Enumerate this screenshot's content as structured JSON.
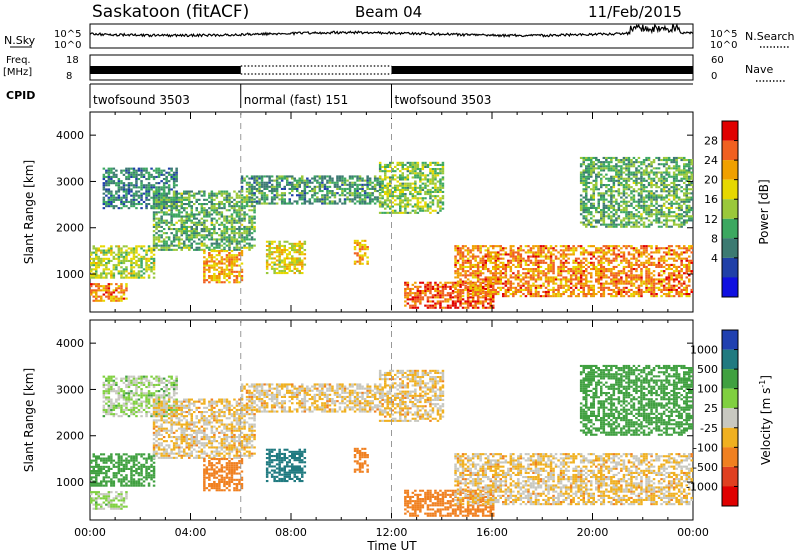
{
  "header": {
    "station": "Saskatoon (fitACF)",
    "beam": "Beam 04",
    "date": "11/Feb/2015"
  },
  "side_labels": {
    "nsky": "N.Sky",
    "freq_line1": "Freq.",
    "freq_line2": "[MHz]",
    "cpid": "CPID",
    "nsearch": "N.Search",
    "nave": "Nave"
  },
  "strip_ticks": {
    "sky_left": [
      "10^5",
      "10^0"
    ],
    "sky_right": [
      "10^5",
      "10^0"
    ],
    "freq_left": [
      "18",
      "8"
    ],
    "nave_right": [
      "60",
      "0"
    ]
  },
  "cpid_segments": [
    {
      "label": "twofsound 3503",
      "start_hr": 0,
      "end_hr": 6
    },
    {
      "label": "normal (fast) 151",
      "start_hr": 6,
      "end_hr": 12
    },
    {
      "label": "twofsound 3503",
      "start_hr": 12,
      "end_hr": 24
    }
  ],
  "x_axis": {
    "label": "Time UT",
    "range_hr": [
      0,
      24
    ],
    "ticks": [
      "00:00",
      "04:00",
      "08:00",
      "12:00",
      "16:00",
      "20:00",
      "00:00"
    ]
  },
  "y_axis": {
    "label": "Slant Range [km]",
    "range_km": [
      180,
      4500
    ],
    "ticks": [
      "1000",
      "2000",
      "3000",
      "4000"
    ]
  },
  "power_scale": {
    "label": "Power [dB]",
    "ticks": [
      "28",
      "24",
      "20",
      "16",
      "12",
      "8",
      "4"
    ],
    "colors": [
      "#e00000",
      "#f06020",
      "#f0a000",
      "#e6d800",
      "#9ac83a",
      "#3ca860",
      "#3c7a72",
      "#2040a8",
      "#1010e0"
    ]
  },
  "velocity_scale": {
    "label": "Velocity [m s",
    "label_sup": "-1",
    "label_end": "]",
    "ticks": [
      "1000",
      "500",
      "100",
      "25",
      "-25",
      "-100",
      "-500",
      "-1000"
    ],
    "colors": [
      "#2040b0",
      "#207a80",
      "#40a040",
      "#80d040",
      "#c8c8c0",
      "#f0b020",
      "#f08020",
      "#e04020",
      "#e00000"
    ]
  },
  "chart_data": {
    "type": "heatmap",
    "panels": [
      "Power [dB]",
      "Velocity [m s-1]"
    ],
    "x_range_hr": [
      0,
      24
    ],
    "y_range_km": [
      180,
      4500
    ],
    "power_range_db": [
      0,
      30
    ],
    "velocity_range_ms": [
      -1000,
      1000
    ],
    "echo_regions": [
      {
        "t0": 0.0,
        "t1": 2.6,
        "r0": 900,
        "r1": 1600,
        "power_db": 16,
        "vel_ms": 100
      },
      {
        "t0": 0.0,
        "t1": 1.5,
        "r0": 400,
        "r1": 800,
        "power_db": 24,
        "vel_ms": 25
      },
      {
        "t0": 0.5,
        "t1": 3.5,
        "r0": 2400,
        "r1": 3300,
        "power_db": 8,
        "vel_ms": 25
      },
      {
        "t0": 2.5,
        "t1": 6.5,
        "r0": 1500,
        "r1": 2800,
        "power_db": 12,
        "vel_ms": -25
      },
      {
        "t0": 4.5,
        "t1": 6.0,
        "r0": 800,
        "r1": 1500,
        "power_db": 22,
        "vel_ms": -100
      },
      {
        "t0": 6.0,
        "t1": 11.5,
        "r0": 2500,
        "r1": 3100,
        "power_db": 10,
        "vel_ms": -25
      },
      {
        "t0": 7.0,
        "t1": 8.5,
        "r0": 1000,
        "r1": 1700,
        "power_db": 18,
        "vel_ms": 500
      },
      {
        "t0": 10.5,
        "t1": 11.0,
        "r0": 1200,
        "r1": 1700,
        "power_db": 22,
        "vel_ms": -100
      },
      {
        "t0": 11.5,
        "t1": 14.0,
        "r0": 2300,
        "r1": 3400,
        "power_db": 14,
        "vel_ms": -25
      },
      {
        "t0": 12.5,
        "t1": 16.0,
        "r0": 250,
        "r1": 800,
        "power_db": 27,
        "vel_ms": -100
      },
      {
        "t0": 14.5,
        "t1": 24.0,
        "r0": 500,
        "r1": 1600,
        "power_db": 24,
        "vel_ms": -25
      },
      {
        "t0": 19.5,
        "t1": 24.0,
        "r0": 2000,
        "r1": 3500,
        "power_db": 12,
        "vel_ms": 100
      }
    ]
  }
}
